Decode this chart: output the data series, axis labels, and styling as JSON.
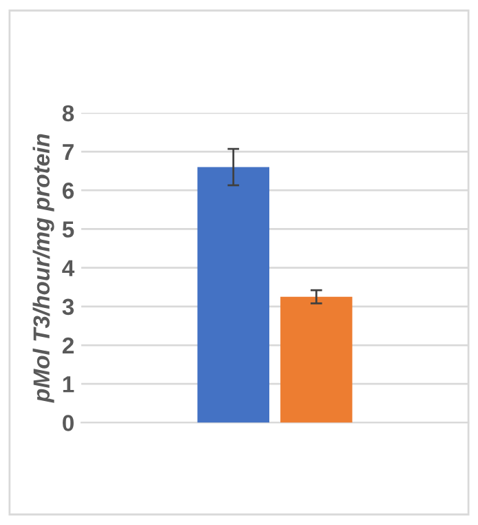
{
  "chart_data": {
    "type": "bar",
    "ylabel": "pMol T3/hour/mg protein",
    "categories": [
      null
    ],
    "series": [
      {
        "color": "#4472c4",
        "values": [
          6.6
        ],
        "errors": [
          0.47
        ]
      },
      {
        "color": "#ed7d31",
        "values": [
          3.25
        ],
        "errors": [
          0.17
        ]
      }
    ],
    "ylim": [
      0,
      8
    ],
    "yticks": [
      0,
      1,
      2,
      3,
      4,
      5,
      6,
      7,
      8
    ],
    "grid": "y"
  }
}
